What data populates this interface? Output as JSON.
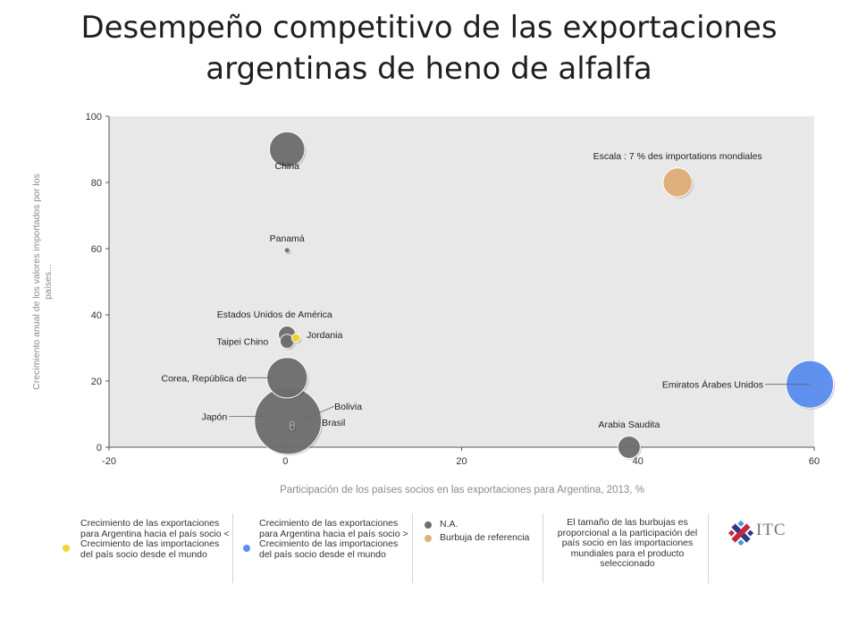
{
  "page_title": "Desempeño competitivo de las exportaciones argentinas de heno de alfalfa",
  "chart_data": {
    "type": "scatter",
    "title": "Desempeño competitivo de las exportaciones argentinas de heno de alfalfa",
    "xlabel": "Participación de los países socios en las exportaciones para Argentina, 2013, %",
    "ylabel": "Crecimiento anual de los valores importados por los países...",
    "xlim": [
      -20,
      60
    ],
    "ylim": [
      0,
      100
    ],
    "xticks": [
      "-20",
      "0",
      "20",
      "40",
      "60"
    ],
    "yticks": [
      "0",
      "20",
      "40",
      "60",
      "80",
      "100"
    ],
    "grid": false,
    "points": [
      {
        "label": "China",
        "x": 0.2,
        "y": 90,
        "size": 2.5,
        "group": "na"
      },
      {
        "label": "Panamá",
        "x": 0.2,
        "y": 59.5,
        "size": 0.05,
        "group": "na"
      },
      {
        "label": "Estados Unidos de América",
        "x": 0.2,
        "y": 34,
        "size": 0.6,
        "group": "na"
      },
      {
        "label": "Taipei Chino",
        "x": 0.2,
        "y": 32,
        "size": 0.4,
        "group": "na"
      },
      {
        "label": "Jordania",
        "x": 1.2,
        "y": 33,
        "size": 0.15,
        "group": "yellow"
      },
      {
        "label": "Corea, República de",
        "x": 0.2,
        "y": 21,
        "size": 3.3,
        "group": "na"
      },
      {
        "label": "Japón",
        "x": 0.3,
        "y": 8,
        "size": 9.0,
        "group": "na"
      },
      {
        "label": "Bolivia",
        "x": 0.8,
        "y": 7,
        "size": 0.05,
        "group": "na"
      },
      {
        "label": "Brasil",
        "x": 0.8,
        "y": 6,
        "size": 0.05,
        "group": "na"
      },
      {
        "label": "Arabia Saudita",
        "x": 39,
        "y": 0,
        "size": 1.0,
        "group": "na"
      },
      {
        "label": "Emiratos Árabes Unidos",
        "x": 59.5,
        "y": 19,
        "size": 4.5,
        "group": "blue"
      }
    ],
    "reference_bubble": {
      "label": "Escala : 7 % des importations mondiales",
      "x": 44.5,
      "y": 80,
      "size": 1.7
    }
  },
  "legend": {
    "yellow_text": "Crecimiento de las exportaciones para Argentina hacia el país socio < Crecimiento de las importaciones del país socio desde el mundo",
    "blue_text": "Crecimiento de las exportaciones para Argentina hacia el país socio > Crecimiento de las importaciones del país socio desde el mundo",
    "na_label": "N.A.",
    "reference_label": "Burbuja de referencia",
    "size_note": "El tamaño de las burbujas es proporcional a la participación del país socio en las importaciones mundiales para el producto seleccionado",
    "logo_text": "ITC"
  },
  "colors": {
    "plot_bg": "#e8e8e8",
    "na": "#6e6e6e",
    "yellow": "#f2d62a",
    "blue": "#5b8ef0",
    "reference": "#e0b07c",
    "axis_text": "#333333",
    "axis_label": "#8a8a8a"
  }
}
